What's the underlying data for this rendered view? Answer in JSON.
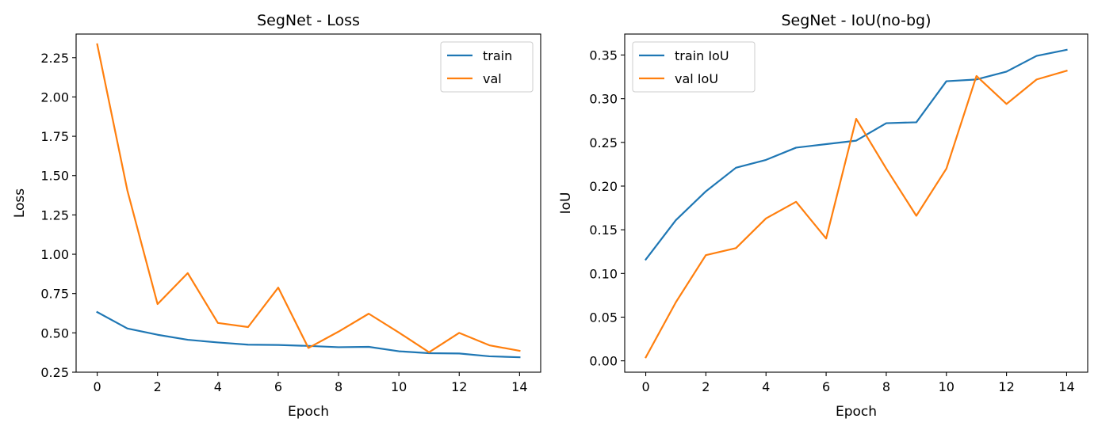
{
  "colors": {
    "series1": "#1f77b4",
    "series2": "#ff7f0e"
  },
  "chart_data": [
    {
      "type": "line",
      "title": "SegNet - Loss",
      "xlabel": "Epoch",
      "ylabel": "Loss",
      "xlim": [
        -0.7,
        14.7
      ],
      "ylim": [
        0.25,
        2.4
      ],
      "xticks": [
        0,
        2,
        4,
        6,
        8,
        10,
        12,
        14
      ],
      "xtick_labels": [
        "0",
        "2",
        "4",
        "6",
        "8",
        "10",
        "12",
        "14"
      ],
      "yticks": [
        0.25,
        0.5,
        0.75,
        1.0,
        1.25,
        1.5,
        1.75,
        2.0,
        2.25
      ],
      "ytick_labels": [
        "0.25",
        "0.50",
        "0.75",
        "1.00",
        "1.25",
        "1.50",
        "1.75",
        "2.00",
        "2.25"
      ],
      "legend_position": "top-right",
      "grid": false,
      "x": [
        0,
        1,
        2,
        3,
        4,
        5,
        6,
        7,
        8,
        9,
        10,
        11,
        12,
        13,
        14
      ],
      "series": [
        {
          "name": "train",
          "color": "#1f77b4",
          "values": [
            0.632,
            0.528,
            0.488,
            0.456,
            0.439,
            0.425,
            0.423,
            0.417,
            0.409,
            0.411,
            0.383,
            0.371,
            0.369,
            0.351,
            0.345
          ]
        },
        {
          "name": "val",
          "color": "#ff7f0e",
          "values": [
            2.335,
            1.405,
            0.683,
            0.88,
            0.563,
            0.537,
            0.788,
            0.404,
            0.508,
            0.622,
            0.502,
            0.377,
            0.5,
            0.421,
            0.386
          ]
        }
      ]
    },
    {
      "type": "line",
      "title": "SegNet - IoU(no-bg)",
      "xlabel": "Epoch",
      "ylabel": "IoU",
      "xlim": [
        -0.7,
        14.7
      ],
      "ylim": [
        -0.013,
        0.374
      ],
      "xticks": [
        0,
        2,
        4,
        6,
        8,
        10,
        12,
        14
      ],
      "xtick_labels": [
        "0",
        "2",
        "4",
        "6",
        "8",
        "10",
        "12",
        "14"
      ],
      "yticks": [
        0.0,
        0.05,
        0.1,
        0.15,
        0.2,
        0.25,
        0.3,
        0.35
      ],
      "ytick_labels": [
        "0.00",
        "0.05",
        "0.10",
        "0.15",
        "0.20",
        "0.25",
        "0.30",
        "0.35"
      ],
      "legend_position": "top-left",
      "grid": false,
      "x": [
        0,
        1,
        2,
        3,
        4,
        5,
        6,
        7,
        8,
        9,
        10,
        11,
        12,
        13,
        14
      ],
      "series": [
        {
          "name": "train IoU",
          "color": "#1f77b4",
          "values": [
            0.116,
            0.161,
            0.194,
            0.221,
            0.23,
            0.244,
            0.248,
            0.252,
            0.272,
            0.273,
            0.32,
            0.322,
            0.331,
            0.349,
            0.356
          ]
        },
        {
          "name": "val IoU",
          "color": "#ff7f0e",
          "values": [
            0.004,
            0.067,
            0.121,
            0.129,
            0.163,
            0.182,
            0.14,
            0.277,
            0.22,
            0.166,
            0.22,
            0.326,
            0.294,
            0.322,
            0.332
          ]
        }
      ]
    }
  ]
}
